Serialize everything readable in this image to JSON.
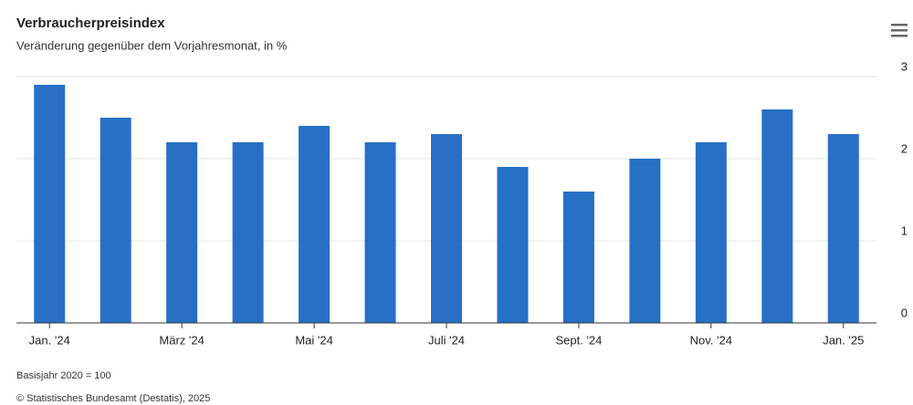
{
  "chart_data": {
    "type": "bar",
    "title": "Verbraucherpreisindex",
    "subtitle": "Veränderung gegenüber dem Vorjahresmonat, in %",
    "categories": [
      "Jan. '24",
      null,
      "März '24",
      null,
      "Mai '24",
      null,
      "Juli '24",
      null,
      "Sept. '24",
      null,
      "Nov. '24",
      null,
      "Jan. '25"
    ],
    "values": [
      2.9,
      2.5,
      2.2,
      2.2,
      2.4,
      2.2,
      2.3,
      1.9,
      1.6,
      2.0,
      2.2,
      2.6,
      2.3
    ],
    "color": "#2770c6",
    "ylim": [
      0,
      3
    ],
    "yticks": [
      0,
      1,
      2,
      3
    ],
    "grid": true,
    "note": "Basisjahr 2020 = 100",
    "source": "© Statistisches Bundesamt (Destatis), 2025"
  }
}
